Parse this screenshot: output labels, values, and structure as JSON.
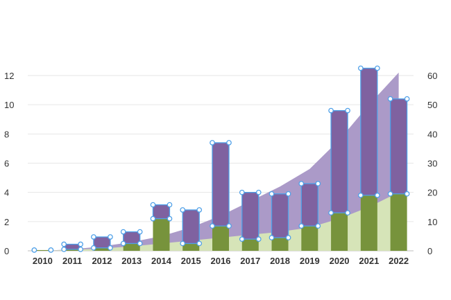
{
  "chart_data": {
    "type": "bar",
    "stacked": true,
    "categories": [
      "2010",
      "2011",
      "2012",
      "2013",
      "2014",
      "2015",
      "2016",
      "2017",
      "2018",
      "2019",
      "2020",
      "2021",
      "2022"
    ],
    "series": [
      {
        "axis": "left",
        "color": "#77933C",
        "values": [
          0.05,
          0.1,
          0.2,
          0.5,
          2.2,
          0.5,
          1.7,
          0.8,
          0.9,
          1.7,
          2.6,
          3.8,
          3.9
        ]
      },
      {
        "axis": "left",
        "color": "#7F62A0",
        "values": [
          0.0,
          0.35,
          0.75,
          0.8,
          0.95,
          2.3,
          5.7,
          3.2,
          3.0,
          2.9,
          7.0,
          8.7,
          6.5
        ]
      }
    ],
    "areas": [
      {
        "axis": "right",
        "color": "#AB9AC8",
        "values": [
          0,
          0.5,
          1.5,
          3,
          5,
          8,
          12,
          17,
          22,
          28,
          38,
          50,
          61
        ]
      },
      {
        "axis": "right",
        "color": "#D6E4B8",
        "values": [
          0,
          0.3,
          0.8,
          1.5,
          2.5,
          3.5,
          4.5,
          5.5,
          6.5,
          8,
          11,
          15,
          20
        ]
      }
    ],
    "marker_color": "#4FA0E8",
    "y_left": {
      "min": 0,
      "max": 12,
      "ticks": [
        "0",
        "2",
        "4",
        "6",
        "8",
        "10",
        "12"
      ]
    },
    "y_right": {
      "min": 0,
      "max": 60,
      "ticks": [
        "0",
        "10",
        "20",
        "30",
        "40",
        "50",
        "60"
      ]
    },
    "grid": true,
    "legend": "none",
    "title": "",
    "xlabel": "",
    "ylabel": ""
  }
}
